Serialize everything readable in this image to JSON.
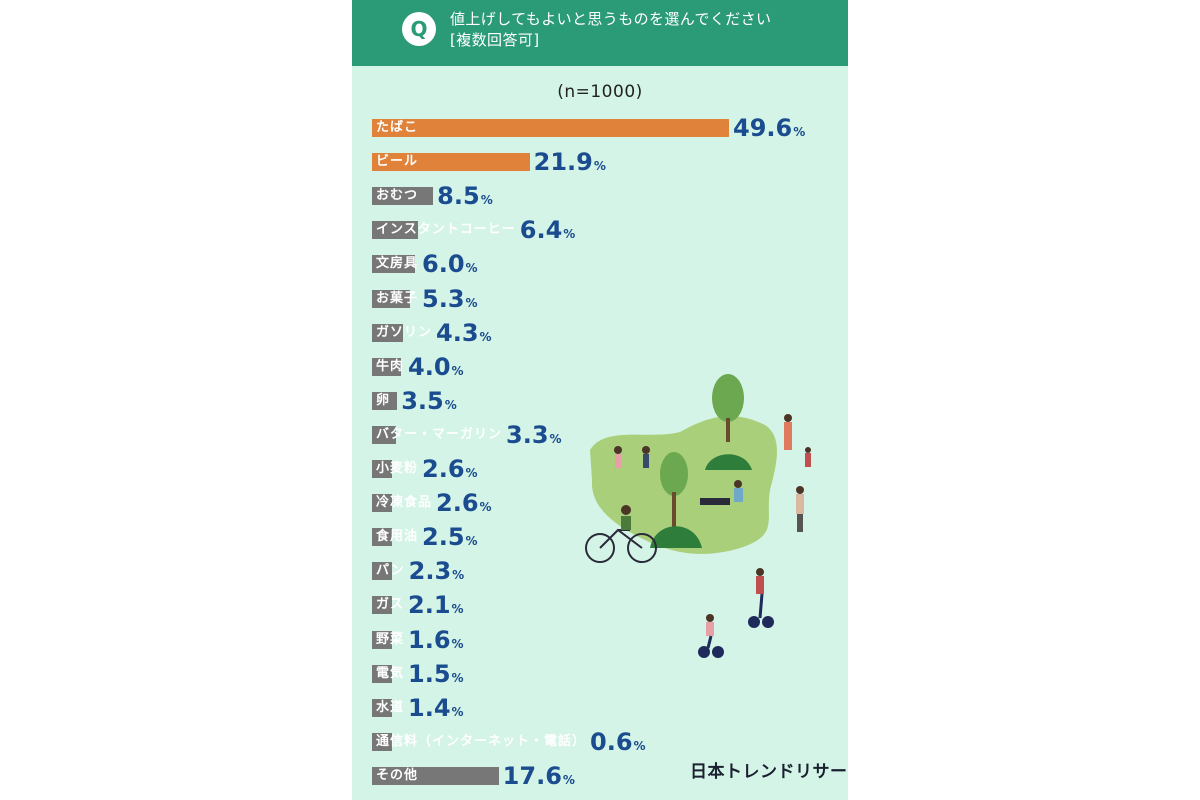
{
  "header": {
    "badge": "Q",
    "question_line1": "値上げしてもよいと思うものを選んでください",
    "question_line2": "[複数回答可]"
  },
  "sample_size": "(n=1000)",
  "brand": "日本トレンドリサーチ",
  "colors": {
    "highlight": "#e0823a",
    "normal": "#777777",
    "value": "#1a4c8f",
    "header": "#2b9a77",
    "background": "#d4f4e7"
  },
  "chart_data": {
    "type": "bar",
    "orientation": "horizontal",
    "unit": "%",
    "categories": [
      "たばこ",
      "ビール",
      "おむつ",
      "インスタントコーヒー",
      "文房具",
      "お菓子",
      "ガソリン",
      "牛肉",
      "卵",
      "バター・マーガリン",
      "小麦粉",
      "冷凍食品",
      "食用油",
      "パン",
      "ガス",
      "野菜",
      "電気",
      "水道",
      "通信料（インターネット・電話）",
      "その他"
    ],
    "values": [
      49.6,
      21.9,
      8.5,
      6.4,
      6.0,
      5.3,
      4.3,
      4.0,
      3.5,
      3.3,
      2.6,
      2.6,
      2.5,
      2.3,
      2.1,
      1.6,
      1.5,
      1.4,
      0.6,
      17.6
    ],
    "value_labels": [
      "49.6",
      "21.9",
      "8.5",
      "6.4",
      "6.0",
      "5.3",
      "4.3",
      "4.0",
      "3.5",
      "3.3",
      "2.6",
      "2.6",
      "2.5",
      "2.3",
      "2.1",
      "1.6",
      "1.5",
      "1.4",
      "0.6",
      "17.6"
    ],
    "highlighted": [
      true,
      true,
      false,
      false,
      false,
      false,
      false,
      false,
      false,
      false,
      false,
      false,
      false,
      false,
      false,
      false,
      false,
      false,
      false,
      false
    ],
    "xlim": [
      0,
      50
    ],
    "grid": false,
    "legend": "none"
  }
}
